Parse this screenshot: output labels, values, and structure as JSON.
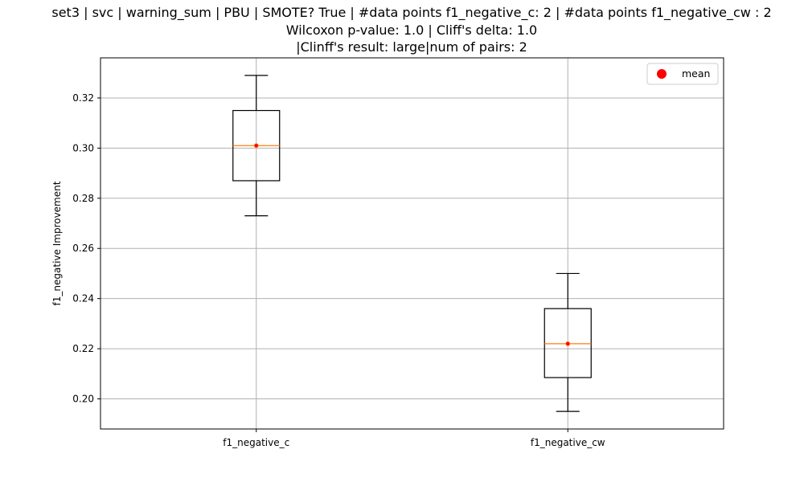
{
  "chart_data": {
    "type": "box",
    "title_lines": [
      "set3 | svc | warning_sum | PBU | SMOTE? True | #data points f1_negative_c: 2 | #data points f1_negative_cw : 2",
      "Wilcoxon p-value: 1.0 | Cliff's delta: 1.0",
      "|Clinff's result: large|num of pairs: 2"
    ],
    "xlabel": "",
    "ylabel": "f1_negative Improvement",
    "categories": [
      "f1_negative_c",
      "f1_negative_cw"
    ],
    "boxes": [
      {
        "whisker_low": 0.273,
        "q1": 0.287,
        "median": 0.301,
        "q3": 0.315,
        "whisker_high": 0.329,
        "mean": 0.301
      },
      {
        "whisker_low": 0.195,
        "q1": 0.2085,
        "median": 0.222,
        "q3": 0.236,
        "whisker_high": 0.25,
        "mean": 0.222
      }
    ],
    "ylim": [
      0.188,
      0.336
    ],
    "yticks": [
      0.2,
      0.22,
      0.24,
      0.26,
      0.28,
      0.3,
      0.32
    ],
    "ytick_labels": [
      "0.20",
      "0.22",
      "0.24",
      "0.26",
      "0.28",
      "0.30",
      "0.32"
    ],
    "grid": true,
    "legend": {
      "position": "top-right",
      "entries": [
        "mean"
      ]
    },
    "colors": {
      "box": "#000000",
      "median": "#ff7f0e",
      "mean": "#ff0000",
      "grid": "#b0b0b0"
    }
  }
}
